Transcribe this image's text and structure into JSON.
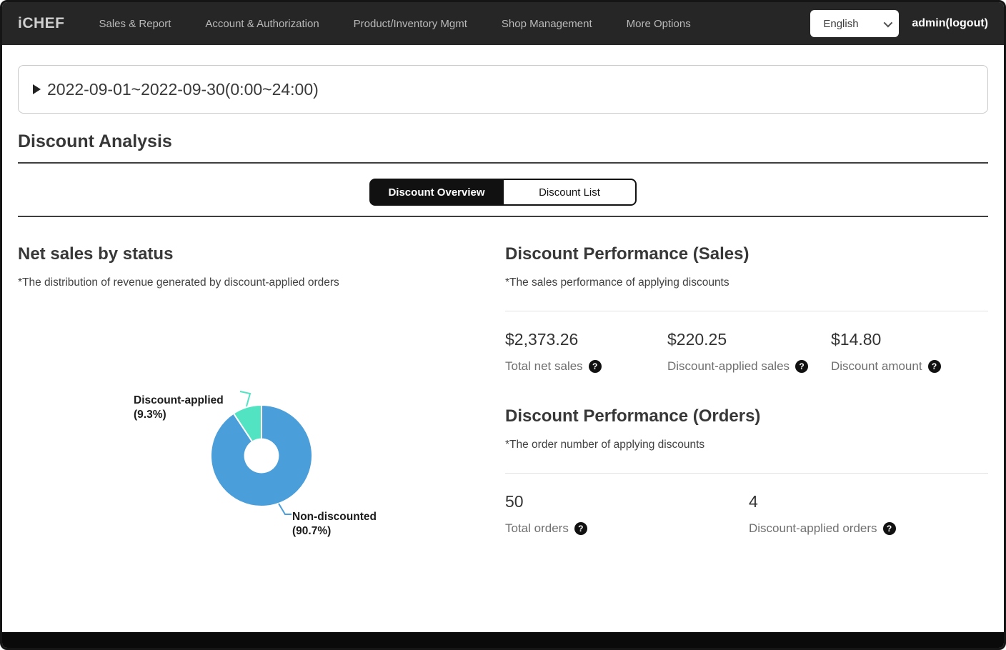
{
  "navbar": {
    "logo": "iCHEF",
    "items": [
      {
        "label": "Sales & Report"
      },
      {
        "label": "Account & Authorization"
      },
      {
        "label": "Product/Inventory Mgmt"
      },
      {
        "label": "Shop Management"
      },
      {
        "label": "More Options"
      }
    ],
    "language": {
      "selected": "English"
    },
    "user": "admin(logout)"
  },
  "date_filter": {
    "label": "2022-09-01~2022-09-30(0:00~24:00)"
  },
  "page": {
    "title": "Discount Analysis"
  },
  "tabs": [
    {
      "label": "Discount Overview",
      "active": true
    },
    {
      "label": "Discount List",
      "active": false
    }
  ],
  "net_sales": {
    "title": "Net sales by status",
    "subtitle": "*The distribution of revenue generated by discount-applied orders"
  },
  "chart_data": {
    "type": "pie",
    "title": "Net sales by status",
    "donut": true,
    "labels": [
      "Discount-applied",
      "Non-discounted"
    ],
    "values": [
      9.3,
      90.7
    ],
    "pct_display": [
      "(9.3%)",
      "(90.7%)"
    ],
    "colors": [
      "#52e3c2",
      "#4a9eda"
    ],
    "start_angle_deg": -33.48,
    "inner_radius_ratio": 0.33,
    "legend_position": "callout-labels"
  },
  "sales_performance": {
    "title": "Discount Performance (Sales)",
    "subtitle": "*The sales performance of applying discounts",
    "stats": [
      {
        "value": "$2,373.26",
        "label": "Total net sales"
      },
      {
        "value": "$220.25",
        "label": "Discount-applied sales"
      },
      {
        "value": "$14.80",
        "label": "Discount amount"
      }
    ]
  },
  "orders_performance": {
    "title": "Discount Performance (Orders)",
    "subtitle": "*The order number of applying discounts",
    "stats": [
      {
        "value": "50",
        "label": "Total orders"
      },
      {
        "value": "4",
        "label": "Discount-applied orders"
      }
    ]
  },
  "icons": {
    "help": "?"
  },
  "colors": {
    "navbar_bg": "#262626",
    "accent_blue": "#4a9eda",
    "accent_mint": "#52e3c2",
    "tab_active_bg": "#111111",
    "divider_dark": "#3e3e3e",
    "divider_light": "#e2e2e2"
  }
}
